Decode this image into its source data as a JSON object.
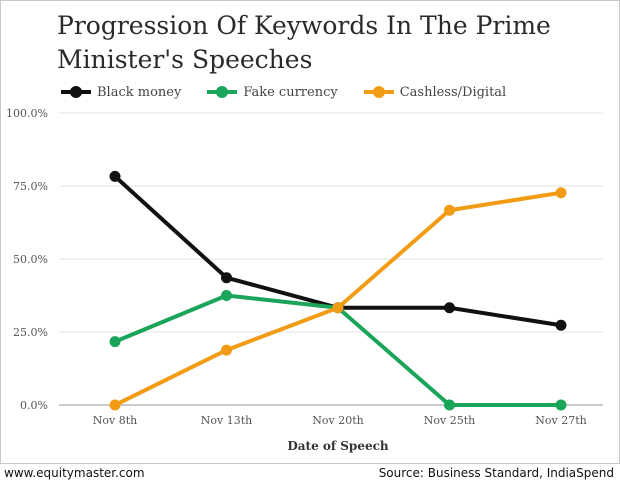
{
  "chart_data": {
    "type": "line",
    "title": "Progression Of Keywords In The Prime Minister's Speeches",
    "xlabel": "Date of Speech",
    "ylabel": "",
    "categories": [
      "Nov 8th",
      "Nov 13th",
      "Nov 20th",
      "Nov 25th",
      "Nov 27th"
    ],
    "yticks": [
      "0.0%",
      "25.0%",
      "50.0%",
      "75.0%",
      "100.0%"
    ],
    "ylim": [
      0,
      100
    ],
    "grid": true,
    "legend_position": "top-left",
    "series": [
      {
        "name": "Black money",
        "color": "#111111",
        "values": [
          78.3,
          43.6,
          33.3,
          33.3,
          27.3
        ]
      },
      {
        "name": "Fake currency",
        "color": "#1aa55a",
        "values": [
          21.7,
          37.5,
          33.3,
          0,
          0
        ]
      },
      {
        "name": "Cashless/Digital",
        "color": "#f29c16",
        "values": [
          0,
          18.8,
          33.3,
          66.7,
          72.7
        ]
      }
    ]
  },
  "footer": {
    "left": "www.equitymaster.com",
    "right": "Source: Business Standard, IndiaSpend"
  }
}
